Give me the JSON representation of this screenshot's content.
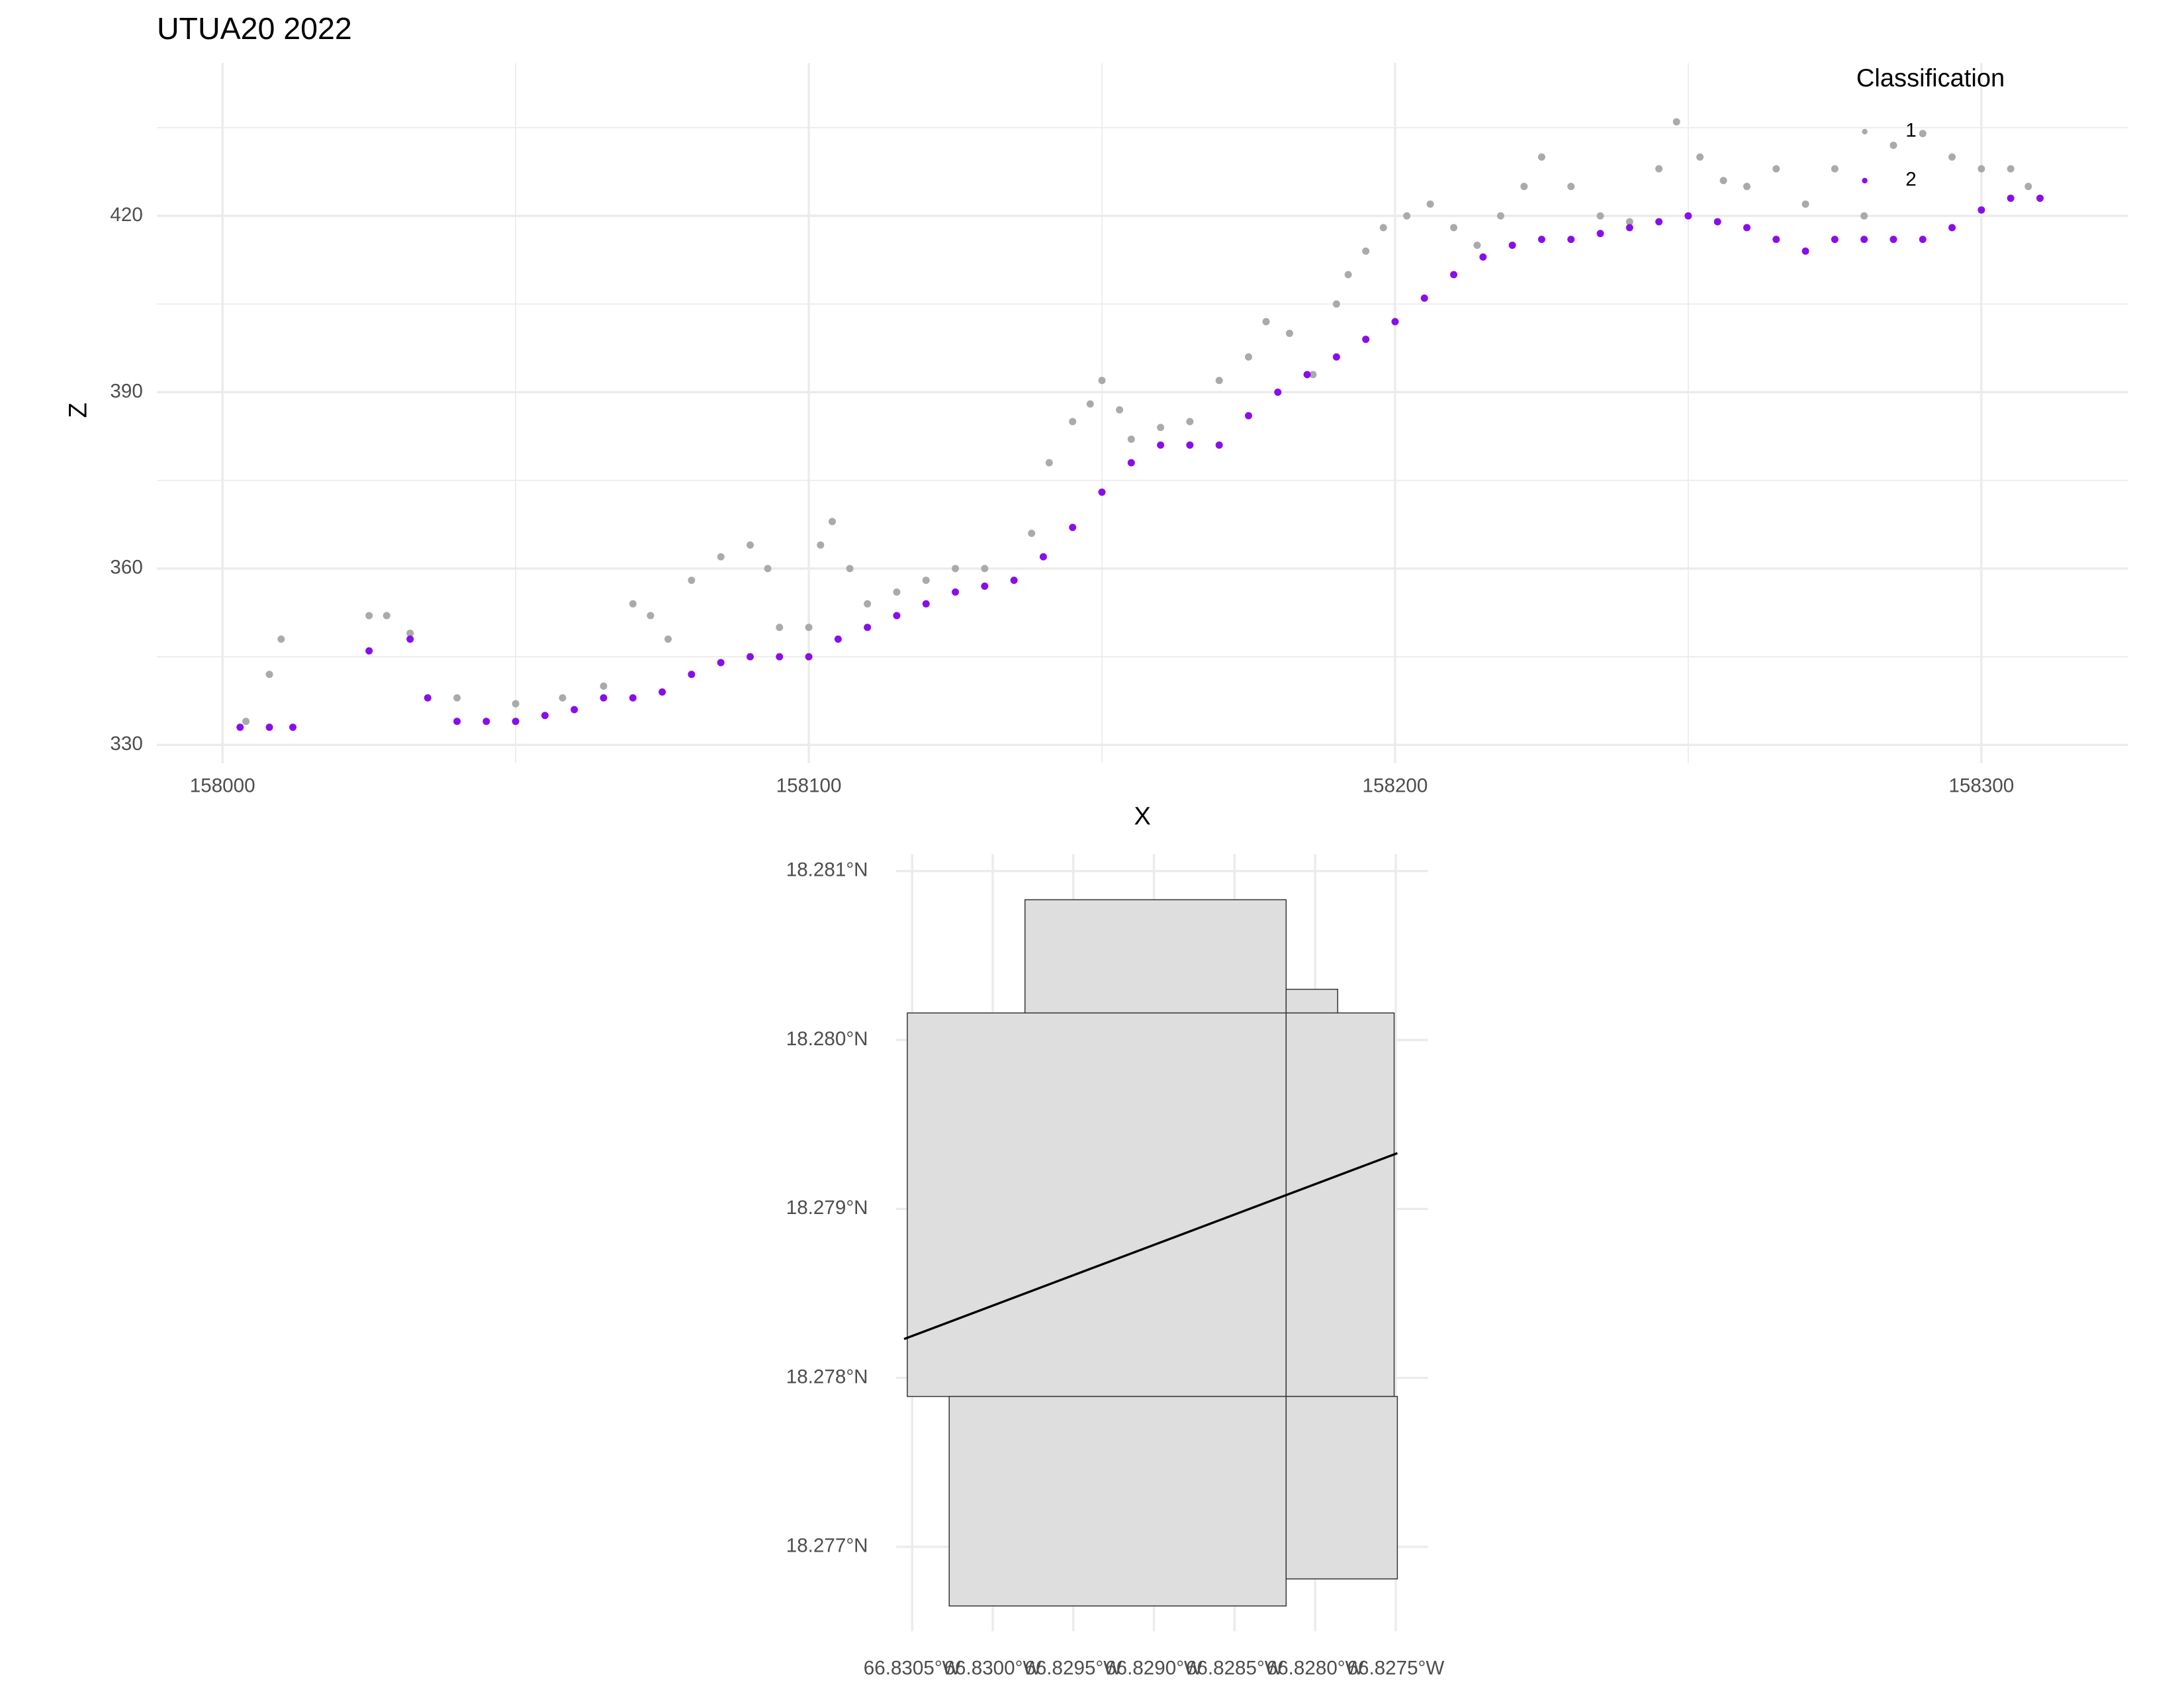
{
  "chart_data": [
    {
      "type": "scatter",
      "title": "UTUA20 2022",
      "x_label": "X",
      "y_label": "Z",
      "legend_title": "Classification",
      "legend": "top-right",
      "grid": true,
      "xlim": [
        157988.8,
        158325
      ],
      "ylim": [
        326.9,
        446
      ],
      "xticks": [
        158000,
        158100,
        158200,
        158300
      ],
      "yticks": [
        330,
        360,
        390,
        420
      ],
      "xminor": [
        158050,
        158150,
        158250
      ],
      "yminor": [
        345,
        375,
        405,
        435
      ],
      "series": [
        {
          "name": "1",
          "color": "#aaaaaa",
          "x": [
            158004,
            158008,
            158010,
            158025,
            158028,
            158032,
            158040,
            158050,
            158058,
            158065,
            158070,
            158073,
            158076,
            158080,
            158085,
            158090,
            158093,
            158095,
            158100,
            158102,
            158104,
            158107,
            158110,
            158115,
            158120,
            158125,
            158130,
            158138,
            158141,
            158145,
            158148,
            158150,
            158153,
            158155,
            158160,
            158165,
            158170,
            158175,
            158178,
            158182,
            158186,
            158190,
            158192,
            158195,
            158198,
            158202,
            158206,
            158210,
            158214,
            158218,
            158222,
            158225,
            158230,
            158235,
            158240,
            158245,
            158248,
            158252,
            158256,
            158260,
            158265,
            158270,
            158275,
            158280,
            158285,
            158290,
            158295,
            158300,
            158305,
            158308
          ],
          "values": [
            334,
            342,
            348,
            352,
            352,
            349,
            338,
            337,
            338,
            340,
            354,
            352,
            348,
            358,
            362,
            364,
            360,
            350,
            350,
            364,
            368,
            360,
            354,
            356,
            358,
            360,
            360,
            366,
            378,
            385,
            388,
            392,
            387,
            382,
            384,
            385,
            392,
            396,
            402,
            400,
            393,
            405,
            410,
            414,
            418,
            420,
            422,
            418,
            415,
            420,
            425,
            430,
            425,
            420,
            419,
            428,
            436,
            430,
            426,
            425,
            428,
            422,
            428,
            420,
            432,
            434,
            430,
            428,
            428,
            425
          ]
        },
        {
          "name": "2",
          "color": "#8a0ee8",
          "x": [
            158003,
            158008,
            158012,
            158025,
            158032,
            158035,
            158040,
            158045,
            158050,
            158055,
            158060,
            158065,
            158070,
            158075,
            158080,
            158085,
            158090,
            158095,
            158100,
            158105,
            158110,
            158115,
            158120,
            158125,
            158130,
            158135,
            158140,
            158145,
            158150,
            158155,
            158160,
            158165,
            158170,
            158175,
            158180,
            158185,
            158190,
            158195,
            158200,
            158205,
            158210,
            158215,
            158220,
            158225,
            158230,
            158235,
            158240,
            158245,
            158250,
            158255,
            158260,
            158265,
            158270,
            158275,
            158280,
            158285,
            158290,
            158295,
            158300,
            158305,
            158310
          ],
          "values": [
            333,
            333,
            333,
            346,
            348,
            338,
            334,
            334,
            334,
            335,
            336,
            338,
            338,
            339,
            342,
            344,
            345,
            345,
            345,
            348,
            350,
            352,
            354,
            356,
            357,
            358,
            362,
            367,
            373,
            378,
            381,
            381,
            381,
            386,
            390,
            393,
            396,
            399,
            402,
            406,
            410,
            413,
            415,
            416,
            416,
            417,
            418,
            419,
            420,
            419,
            418,
            416,
            414,
            416,
            416,
            416,
            416,
            418,
            421,
            423,
            423
          ]
        }
      ]
    },
    {
      "type": "map",
      "xlim": [
        -66.8306,
        -66.8273
      ],
      "ylim": [
        18.2765,
        18.2811
      ],
      "grid": true,
      "xticks": [
        {
          "value": -66.8305,
          "label": "66.8305°W"
        },
        {
          "value": -66.83,
          "label": "66.8300°W"
        },
        {
          "value": -66.8295,
          "label": "66.8295°W"
        },
        {
          "value": -66.829,
          "label": "66.8290°W"
        },
        {
          "value": -66.8285,
          "label": "66.8285°W"
        },
        {
          "value": -66.828,
          "label": "66.8280°W"
        },
        {
          "value": -66.8275,
          "label": "66.8275°W"
        }
      ],
      "yticks": [
        {
          "value": 18.277,
          "label": "18.277°N"
        },
        {
          "value": 18.278,
          "label": "18.278°N"
        },
        {
          "value": 18.279,
          "label": "18.279°N"
        },
        {
          "value": 18.28,
          "label": "18.280°N"
        },
        {
          "value": 18.281,
          "label": "18.281°N"
        }
      ],
      "fill": "#dedede",
      "edge": "#333333",
      "line_color": "#000000",
      "rects": [
        {
          "xmin": -66.8298,
          "xmax": -66.82818,
          "ymin": 18.28016,
          "ymax": 18.28083
        },
        {
          "xmin": -66.82818,
          "xmax": -66.82786,
          "ymin": 18.28016,
          "ymax": 18.2803
        },
        {
          "xmin": -66.83053,
          "xmax": -66.82818,
          "ymin": 18.27789,
          "ymax": 18.28016
        },
        {
          "xmin": -66.82818,
          "xmax": -66.82751,
          "ymin": 18.27789,
          "ymax": 18.28016
        },
        {
          "xmin": -66.83027,
          "xmax": -66.82818,
          "ymin": 18.27665,
          "ymax": 18.27789
        },
        {
          "xmin": -66.82818,
          "xmax": -66.82749,
          "ymin": 18.27681,
          "ymax": 18.27789
        }
      ],
      "line": {
        "x": [
          -66.83055,
          -66.82749
        ],
        "y": [
          18.27823,
          18.27933
        ]
      }
    }
  ]
}
